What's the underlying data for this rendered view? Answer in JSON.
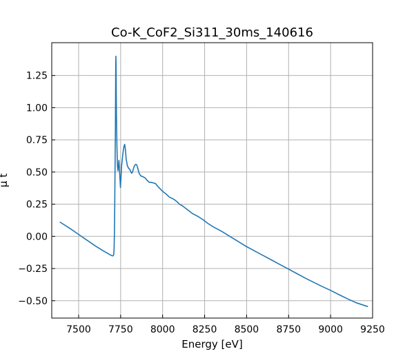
{
  "chart_data": {
    "type": "line",
    "title": "Co-K_CoF2_Si311_30ms_140616",
    "xlabel": "Energy [eV]",
    "ylabel": "μ t",
    "xlim": [
      7340,
      9250
    ],
    "ylim": [
      -0.635,
      1.505
    ],
    "xticks": [
      7500,
      7750,
      8000,
      8250,
      8500,
      8750,
      9000,
      9250
    ],
    "xtick_labels": [
      "7500",
      "7750",
      "8000",
      "8250",
      "8500",
      "8750",
      "9000",
      "9250"
    ],
    "yticks": [
      -0.5,
      -0.25,
      0.0,
      0.25,
      0.5,
      0.75,
      1.0,
      1.25
    ],
    "ytick_labels": [
      "−0.50",
      "−0.25",
      "0.00",
      "0.25",
      "0.50",
      "0.75",
      "1.00",
      "1.25"
    ],
    "grid": true,
    "series_color": "#1f77b4",
    "series": [
      {
        "points": [
          [
            7390,
            0.11
          ],
          [
            7450,
            0.06
          ],
          [
            7500,
            0.015
          ],
          [
            7550,
            -0.03
          ],
          [
            7600,
            -0.075
          ],
          [
            7650,
            -0.115
          ],
          [
            7690,
            -0.145
          ],
          [
            7702,
            -0.152
          ],
          [
            7706,
            -0.15
          ],
          [
            7709,
            -0.14
          ],
          [
            7711,
            -0.1
          ],
          [
            7713,
            0.02
          ],
          [
            7715,
            0.25
          ],
          [
            7717,
            0.55
          ],
          [
            7719,
            0.85
          ],
          [
            7720,
            1.1
          ],
          [
            7721,
            1.35
          ],
          [
            7722,
            1.4
          ],
          [
            7723,
            1.3
          ],
          [
            7725,
            0.95
          ],
          [
            7728,
            0.7
          ],
          [
            7731,
            0.55
          ],
          [
            7734,
            0.51
          ],
          [
            7737,
            0.55
          ],
          [
            7740,
            0.59
          ],
          [
            7743,
            0.52
          ],
          [
            7746,
            0.45
          ],
          [
            7749,
            0.38
          ],
          [
            7752,
            0.45
          ],
          [
            7756,
            0.55
          ],
          [
            7760,
            0.6
          ],
          [
            7765,
            0.66
          ],
          [
            7770,
            0.7
          ],
          [
            7774,
            0.715
          ],
          [
            7778,
            0.68
          ],
          [
            7783,
            0.6
          ],
          [
            7790,
            0.55
          ],
          [
            7797,
            0.53
          ],
          [
            7805,
            0.52
          ],
          [
            7811,
            0.5
          ],
          [
            7816,
            0.49
          ],
          [
            7821,
            0.5
          ],
          [
            7827,
            0.53
          ],
          [
            7833,
            0.55
          ],
          [
            7840,
            0.56
          ],
          [
            7846,
            0.555
          ],
          [
            7852,
            0.53
          ],
          [
            7860,
            0.49
          ],
          [
            7870,
            0.47
          ],
          [
            7880,
            0.465
          ],
          [
            7895,
            0.455
          ],
          [
            7908,
            0.435
          ],
          [
            7920,
            0.42
          ],
          [
            7932,
            0.42
          ],
          [
            7945,
            0.415
          ],
          [
            7958,
            0.41
          ],
          [
            7970,
            0.39
          ],
          [
            7985,
            0.37
          ],
          [
            8000,
            0.35
          ],
          [
            8020,
            0.33
          ],
          [
            8040,
            0.305
          ],
          [
            8065,
            0.29
          ],
          [
            8085,
            0.27
          ],
          [
            8100,
            0.25
          ],
          [
            8120,
            0.235
          ],
          [
            8150,
            0.205
          ],
          [
            8180,
            0.175
          ],
          [
            8210,
            0.155
          ],
          [
            8240,
            0.13
          ],
          [
            8270,
            0.1
          ],
          [
            8300,
            0.075
          ],
          [
            8350,
            0.04
          ],
          [
            8400,
            0.0
          ],
          [
            8450,
            -0.04
          ],
          [
            8500,
            -0.08
          ],
          [
            8550,
            -0.115
          ],
          [
            8600,
            -0.15
          ],
          [
            8650,
            -0.185
          ],
          [
            8700,
            -0.22
          ],
          [
            8750,
            -0.255
          ],
          [
            8800,
            -0.29
          ],
          [
            8850,
            -0.325
          ],
          [
            8900,
            -0.358
          ],
          [
            8950,
            -0.39
          ],
          [
            9000,
            -0.42
          ],
          [
            9050,
            -0.453
          ],
          [
            9100,
            -0.485
          ],
          [
            9150,
            -0.515
          ],
          [
            9220,
            -0.545
          ]
        ]
      }
    ]
  }
}
